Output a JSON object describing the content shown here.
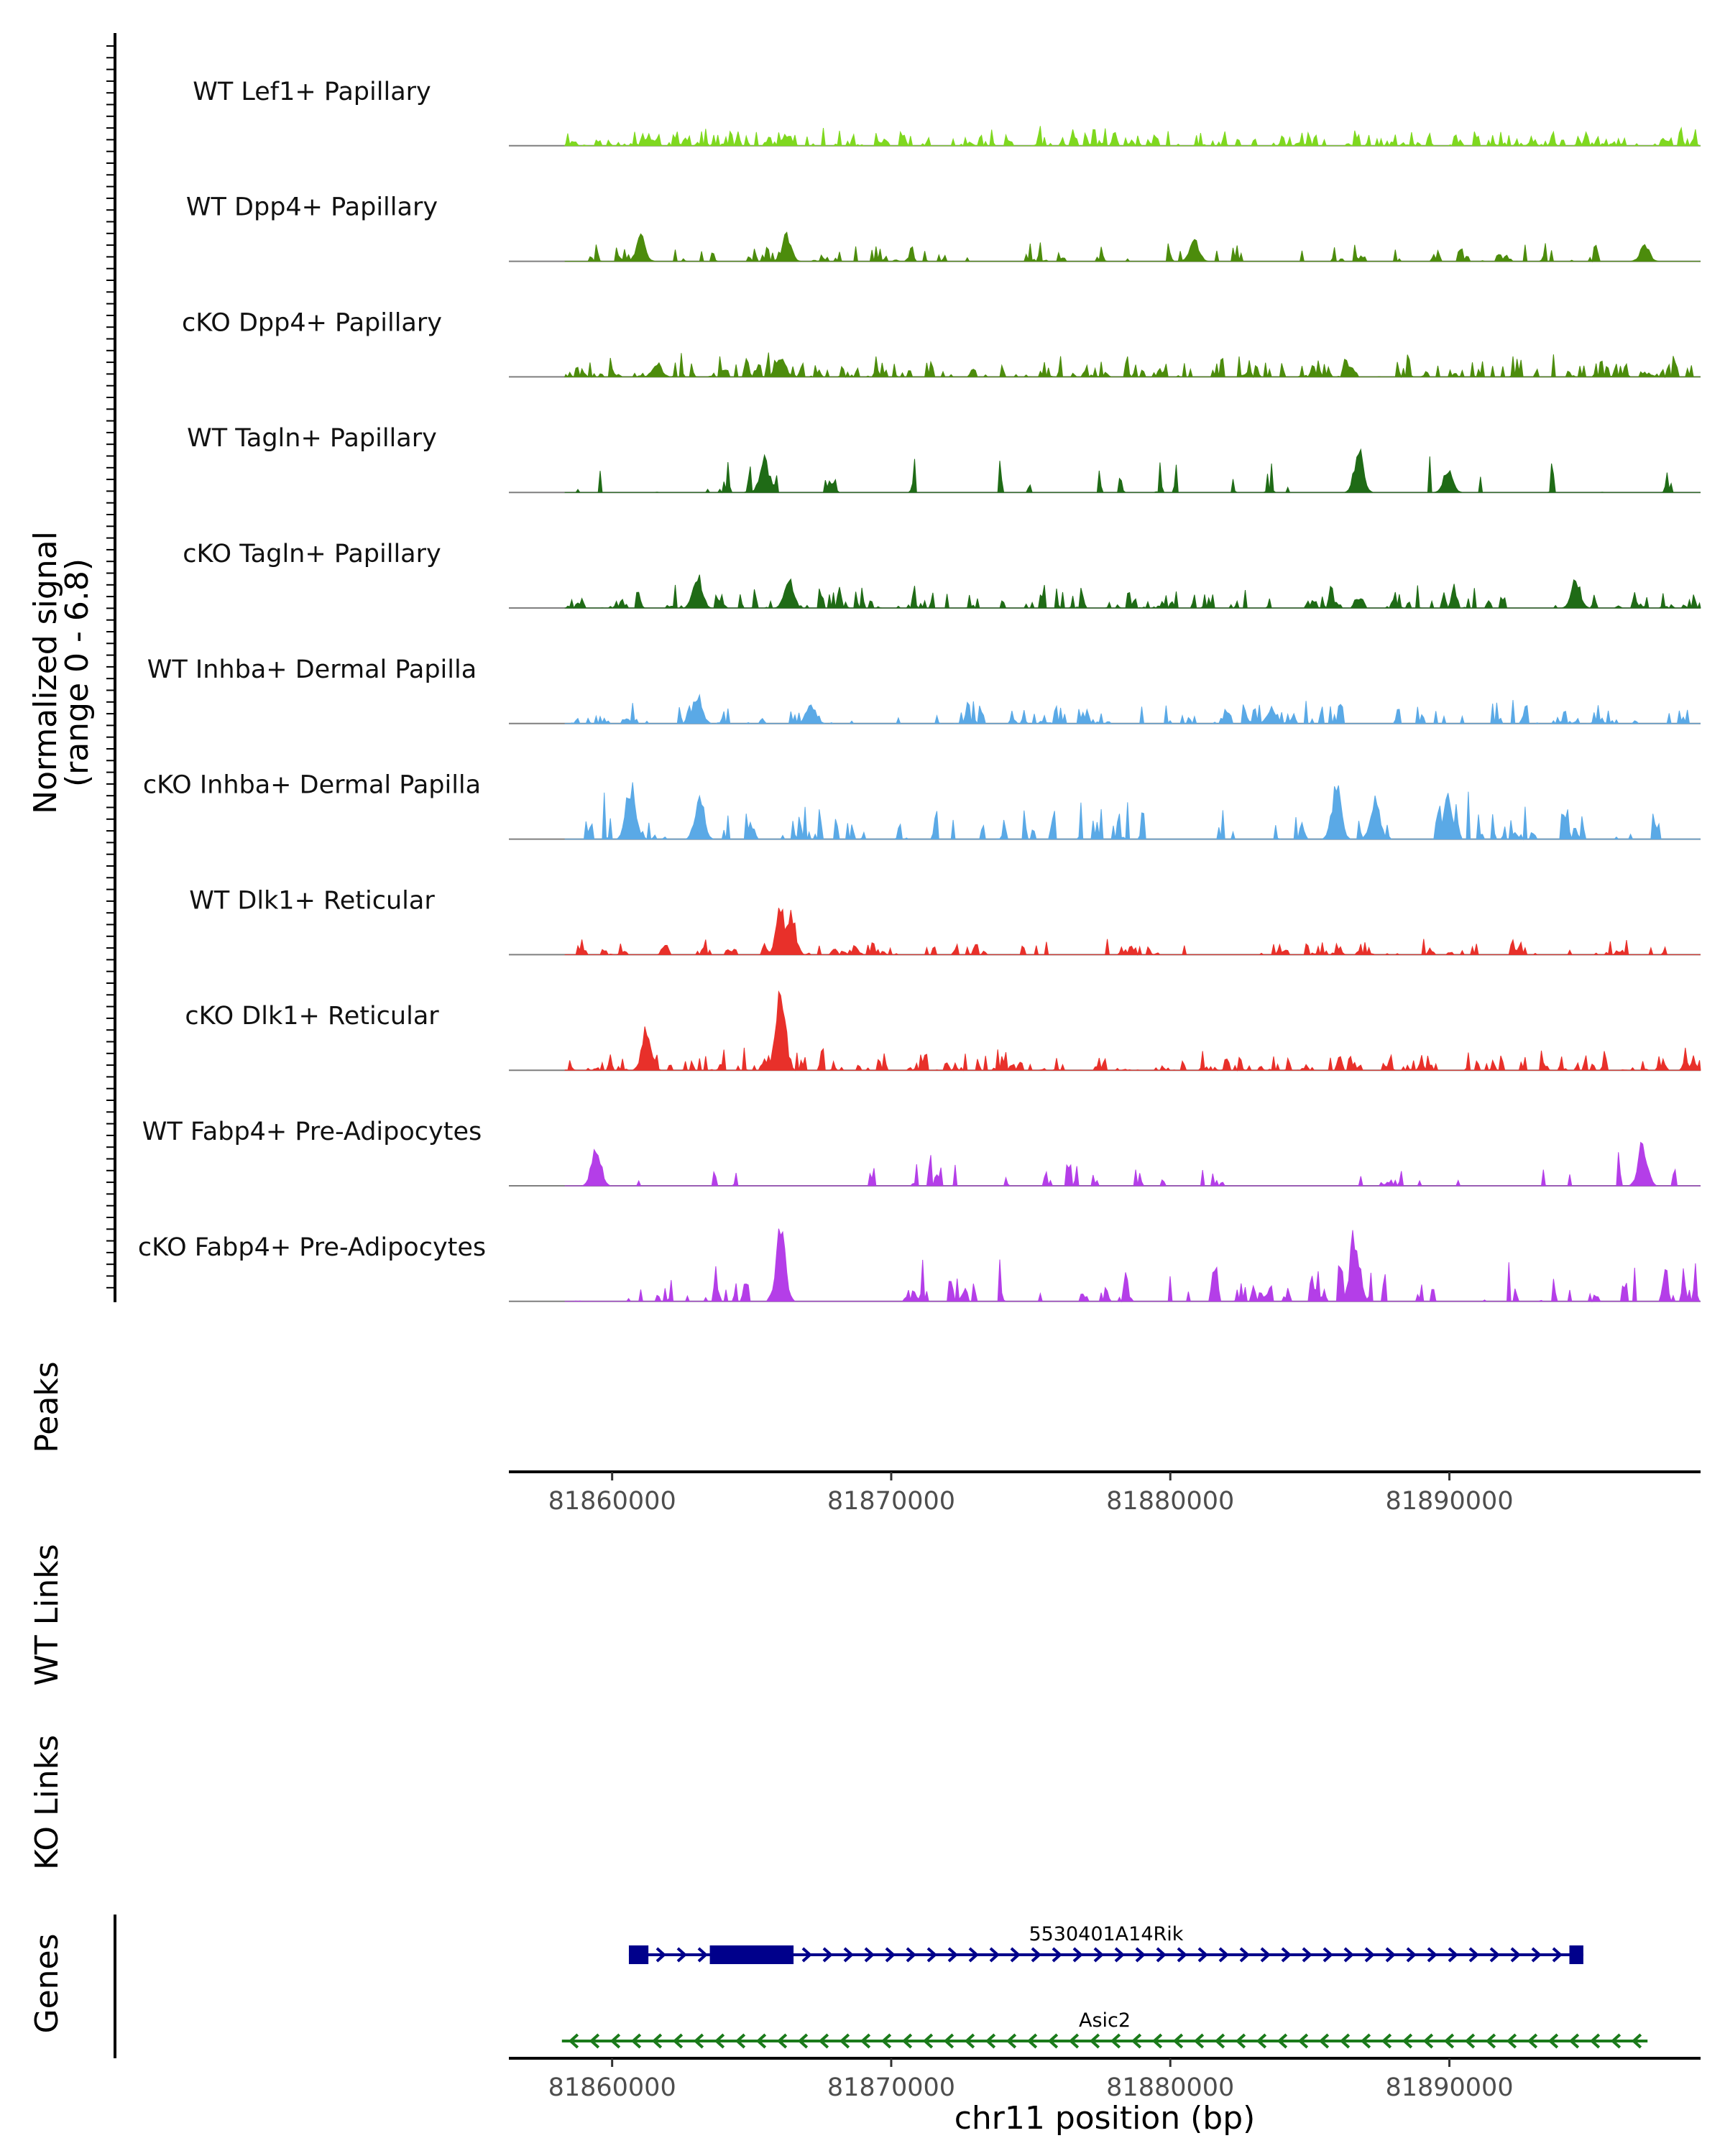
{
  "chart_data": {
    "type": "area",
    "title": "",
    "ylabel": "Normalized signal",
    "ylabel_range": "(range 0 - 6.8)",
    "ylim": [
      0,
      6.8
    ],
    "xlabel": "chr11 position (bp)",
    "xlim": [
      81856300,
      81899000
    ],
    "x_ticks": [
      81860000,
      81870000,
      81880000,
      81890000
    ],
    "x_tick_labels": [
      "81860000",
      "81870000",
      "81880000",
      "81890000"
    ],
    "tracks": [
      {
        "name": "WT Lef1+ Papillary",
        "color": "#7fd81f",
        "seed": 11,
        "density": 0.78,
        "max": 0.8,
        "peaks": [
          [
            81866200,
            0.8
          ],
          [
            81861300,
            0.55
          ]
        ]
      },
      {
        "name": "WT Dpp4+ Papillary",
        "color": "#4c8c0c",
        "seed": 23,
        "density": 0.22,
        "max": 0.9,
        "peaks": [
          [
            81861000,
            1.8
          ],
          [
            81866200,
            1.9
          ],
          [
            81880800,
            1.5
          ],
          [
            81897000,
            1.2
          ]
        ]
      },
      {
        "name": "cKO Dpp4+ Papillary",
        "color": "#4c8c0c",
        "seed": 37,
        "density": 0.7,
        "max": 1.0,
        "peaks": [
          [
            81866000,
            1.7
          ],
          [
            81861600,
            1.0
          ]
        ]
      },
      {
        "name": "WT Tagln+ Papillary",
        "color": "#1f6b16",
        "seed": 41,
        "density": 0.13,
        "max": 1.6,
        "peaks": [
          [
            81865400,
            2.6
          ],
          [
            81886700,
            3.0
          ],
          [
            81889900,
            1.6
          ]
        ]
      },
      {
        "name": "cKO Tagln+ Papillary",
        "color": "#1f6b16",
        "seed": 53,
        "density": 0.42,
        "max": 1.1,
        "peaks": [
          [
            81863000,
            2.6
          ],
          [
            81866300,
            2.2
          ],
          [
            81894500,
            2.0
          ]
        ]
      },
      {
        "name": "WT Inhba+ Dermal Papilla",
        "color": "#5aa9e6",
        "seed": 67,
        "density": 0.33,
        "max": 1.0,
        "peaks": [
          [
            81863000,
            2.4
          ],
          [
            81867100,
            1.6
          ],
          [
            81883600,
            1.1
          ]
        ]
      },
      {
        "name": "cKO Inhba+ Dermal Papilla",
        "color": "#5aa9e6",
        "seed": 71,
        "density": 0.25,
        "max": 2.0,
        "peaks": [
          [
            81860600,
            4.1
          ],
          [
            81863100,
            3.3
          ],
          [
            81885900,
            4.0
          ],
          [
            81887300,
            3.0
          ],
          [
            81889900,
            3.0
          ]
        ]
      },
      {
        "name": "WT Dlk1+ Reticular",
        "color": "#e8302a",
        "seed": 83,
        "density": 0.34,
        "max": 0.7,
        "peaks": [
          [
            81866000,
            3.6
          ],
          [
            81866400,
            3.1
          ]
        ]
      },
      {
        "name": "cKO Dlk1+ Reticular",
        "color": "#e8302a",
        "seed": 97,
        "density": 0.62,
        "max": 0.9,
        "peaks": [
          [
            81866000,
            6.8
          ],
          [
            81861200,
            3.1
          ]
        ]
      },
      {
        "name": "WT Fabp4+ Pre-Adipocytes",
        "color": "#b43ee8",
        "seed": 101,
        "density": 0.13,
        "max": 1.4,
        "peaks": [
          [
            81859400,
            3.0
          ],
          [
            81896900,
            3.2
          ]
        ]
      },
      {
        "name": "cKO Fabp4+ Pre-Adipocytes",
        "color": "#b43ee8",
        "seed": 113,
        "density": 0.3,
        "max": 1.8,
        "peaks": [
          [
            81866000,
            5.5
          ],
          [
            81886600,
            5.1
          ]
        ]
      }
    ],
    "panels": {
      "peaks": "Peaks",
      "wt_links": "WT Links",
      "ko_links": "KO Links",
      "genes": "Genes"
    },
    "genes": [
      {
        "name": "5530401A14Rik",
        "strand": "+",
        "color": "#00008b",
        "start": 81860600,
        "end": 81894800,
        "exons": [
          [
            81860600,
            81861300
          ],
          [
            81863500,
            81866500
          ],
          [
            81894300,
            81894800
          ]
        ]
      },
      {
        "name": "Asic2",
        "strand": "-",
        "color": "#1a7a1a",
        "start": 81858200,
        "end": 81897100,
        "exons": []
      }
    ]
  }
}
